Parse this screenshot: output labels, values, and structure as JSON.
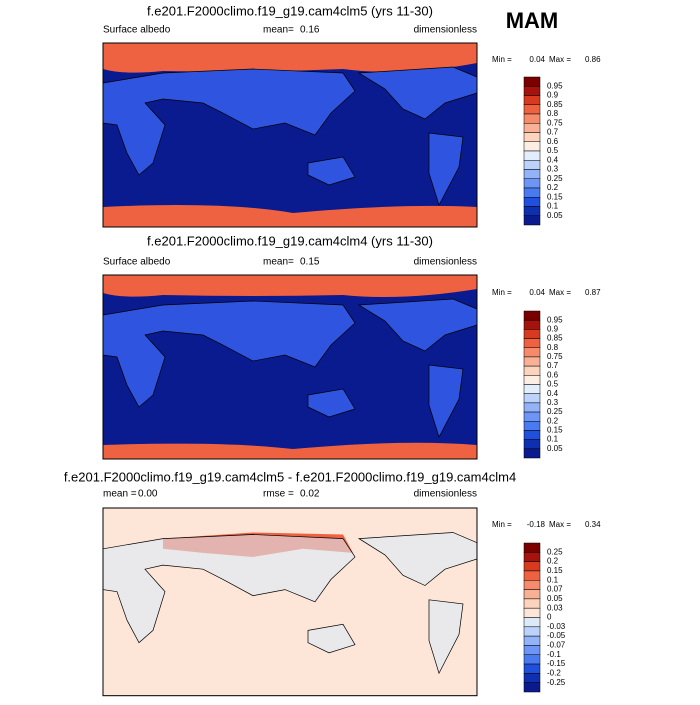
{
  "season": "MAM",
  "panels": [
    {
      "title": "f.e201.F2000climo.f19_g19.cam4clm5 (yrs 11-30)",
      "variable": "Surface albedo",
      "stat_label": "mean=",
      "stat": "0.16",
      "units": "dimensionless",
      "min_label": "Min =",
      "min": "0.04",
      "max_label": "Max =",
      "max": "0.86",
      "colorbar": {
        "labels": [
          "0.95",
          "0.9",
          "0.85",
          "0.8",
          "0.75",
          "0.7",
          "0.6",
          "0.5",
          "0.4",
          "0.3",
          "0.25",
          "0.2",
          "0.15",
          "0.1",
          "0.05"
        ],
        "colors": [
          "#7a0000",
          "#a5130c",
          "#d83a20",
          "#ee6241",
          "#f58b6b",
          "#f9b195",
          "#fcd3bc",
          "#fdeee3",
          "#e3eefd",
          "#bcd2fb",
          "#93b3f8",
          "#6d95f5",
          "#4a7af0",
          "#1f4fdc",
          "#0d2fb0",
          "#0a1a8f"
        ]
      }
    },
    {
      "title": "f.e201.F2000climo.f19_g19.cam4clm4 (yrs 11-30)",
      "variable": "Surface albedo",
      "stat_label": "mean=",
      "stat": "0.15",
      "units": "dimensionless",
      "min_label": "Min =",
      "min": "0.04",
      "max_label": "Max =",
      "max": "0.87",
      "colorbar": {
        "labels": [
          "0.95",
          "0.9",
          "0.85",
          "0.8",
          "0.75",
          "0.7",
          "0.6",
          "0.5",
          "0.4",
          "0.3",
          "0.25",
          "0.2",
          "0.15",
          "0.1",
          "0.05"
        ],
        "colors": [
          "#7a0000",
          "#a5130c",
          "#d83a20",
          "#ee6241",
          "#f58b6b",
          "#f9b195",
          "#fcd3bc",
          "#fdeee3",
          "#e3eefd",
          "#bcd2fb",
          "#93b3f8",
          "#6d95f5",
          "#4a7af0",
          "#1f4fdc",
          "#0d2fb0",
          "#0a1a8f"
        ]
      }
    },
    {
      "title": "f.e201.F2000climo.f19_g19.cam4clm5 - f.e201.F2000climo.f19_g19.cam4clm4",
      "stat_label": "mean =",
      "stat": "0.00",
      "rmse_label": "rmse =",
      "rmse": "0.02",
      "units": "dimensionless",
      "min_label": "Min =",
      "min": "-0.18",
      "max_label": "Max =",
      "max": "0.34",
      "colorbar": {
        "labels": [
          "0.25",
          "0.2",
          "0.15",
          "0.1",
          "0.07",
          "0.05",
          "0.03",
          "0",
          "-0.03",
          "-0.05",
          "-0.07",
          "-0.1",
          "-0.15",
          "-0.2",
          "-0.25"
        ],
        "colors": [
          "#7a0000",
          "#a5130c",
          "#d83a20",
          "#ee6241",
          "#f58b6b",
          "#f9b195",
          "#fcd3bc",
          "#fde6d8",
          "#dceaf8",
          "#bcd2fb",
          "#93b3f8",
          "#6d95f5",
          "#4a7af0",
          "#1f4fdc",
          "#0d2fb0",
          "#0a1a8f"
        ]
      }
    }
  ]
}
